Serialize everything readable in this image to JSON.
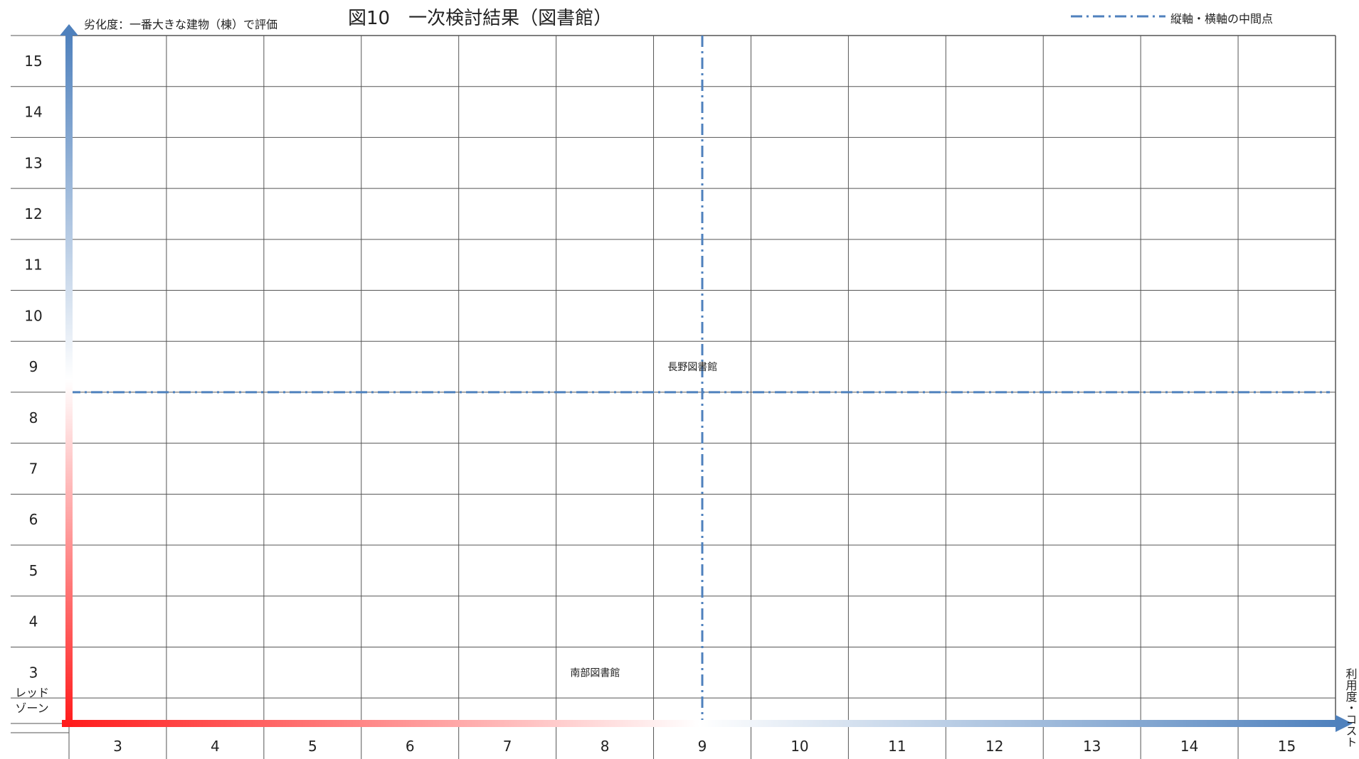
{
  "chart_data": {
    "type": "scatter",
    "title": "図10　一次検討結果（図書館）",
    "ylabel": "劣化度：一番大きな建物（棟）で評価",
    "xlabel": "利用度・コスト",
    "legend": {
      "label": "縦軸・横軸の中間点",
      "placement": "top-right"
    },
    "y_tick_labels": [
      "15",
      "14",
      "13",
      "12",
      "11",
      "10",
      "9",
      "8",
      "7",
      "6",
      "5",
      "4",
      "3"
    ],
    "y_bottom_label": [
      "レッド",
      "ゾーン"
    ],
    "x_tick_labels": [
      "3",
      "4",
      "5",
      "6",
      "7",
      "8",
      "9",
      "10",
      "11",
      "12",
      "13",
      "14",
      "15"
    ],
    "xlim": [
      2.5,
      15.5
    ],
    "ylim": [
      2,
      15.5
    ],
    "grid": true,
    "midpoint": {
      "x": 9,
      "y": 8.5
    },
    "points": [
      {
        "name": "長野図書館",
        "x": 8.9,
        "y": 9
      },
      {
        "name": "南部図書館",
        "x": 7.9,
        "y": 3
      }
    ],
    "colors": {
      "axis_low": "#ff1a1a",
      "axis_high": "#4f81bd",
      "midline": "#4f81bd",
      "grid": "#555555"
    }
  }
}
